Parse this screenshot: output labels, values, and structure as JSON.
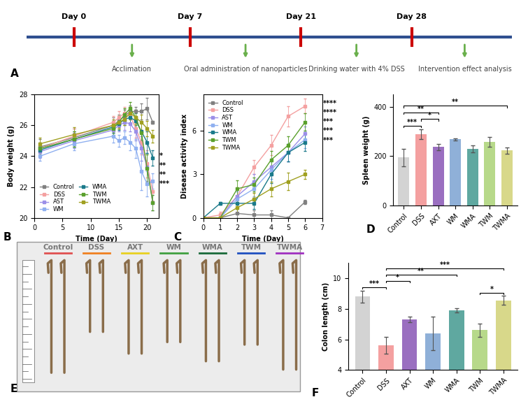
{
  "timeline": {
    "panel_label": "A",
    "days": [
      "Day 0",
      "Day 7",
      "Day 21",
      "Day 28"
    ],
    "phases": [
      "Acclimation",
      "Oral administration of nanoparticles",
      "Drinking water with 4% DSS",
      "Intervention effect analysis"
    ]
  },
  "chart_data": [
    {
      "type": "line",
      "panel_label": "B",
      "x_label": "Time (Day)",
      "y_label": "Body weight (g)",
      "x": [
        1,
        7,
        14,
        15,
        16,
        17,
        18,
        19,
        20,
        21
      ],
      "xlim": [
        0,
        22
      ],
      "xticks": [
        0,
        5,
        10,
        15,
        20
      ],
      "ylim": [
        20,
        28
      ],
      "yticks": [
        20,
        22,
        24,
        26,
        28
      ],
      "legend": "lower left",
      "marker": "square",
      "annotations": [
        "*",
        "**",
        "**",
        "***"
      ],
      "series": [
        {
          "name": "Control",
          "color": "#808080",
          "values": [
            24.6,
            25.2,
            26.0,
            26.3,
            26.6,
            26.9,
            26.9,
            26.9,
            27.1,
            26.2
          ],
          "errors": [
            0.5,
            0.6,
            0.5,
            0.4,
            0.4,
            0.4,
            0.3,
            0.5,
            0.7,
            0.1
          ]
        },
        {
          "name": "DSS",
          "color": "#f4a0a0",
          "values": [
            24.5,
            25.3,
            26.2,
            26.5,
            26.8,
            26.6,
            25.8,
            24.9,
            23.5,
            21.7
          ],
          "errors": [
            0.4,
            0.5,
            0.4,
            0.4,
            0.4,
            0.5,
            0.6,
            0.8,
            0.9,
            0.6
          ]
        },
        {
          "name": "AST",
          "color": "#9b8fe8",
          "values": [
            24.3,
            25.0,
            25.7,
            26.0,
            26.2,
            26.1,
            25.6,
            24.5,
            23.3,
            21.0
          ],
          "errors": [
            0.4,
            0.5,
            0.4,
            0.4,
            0.5,
            0.5,
            0.6,
            0.8,
            0.9,
            0.5
          ]
        },
        {
          "name": "WM",
          "color": "#8fb0f0",
          "values": [
            24.0,
            24.8,
            25.3,
            25.0,
            25.2,
            24.9,
            24.5,
            23.0,
            22.2,
            22.4
          ],
          "errors": [
            0.3,
            0.4,
            0.4,
            0.4,
            0.4,
            0.5,
            0.6,
            1.2,
            0.8,
            0.5
          ]
        },
        {
          "name": "WMA",
          "color": "#1a7a8a",
          "values": [
            24.4,
            25.1,
            25.9,
            26.1,
            26.4,
            26.5,
            26.3,
            25.6,
            24.9,
            23.9
          ],
          "errors": [
            0.4,
            0.5,
            0.4,
            0.4,
            0.4,
            0.4,
            0.5,
            0.6,
            0.7,
            0.5
          ]
        },
        {
          "name": "TWM",
          "color": "#5aa02c",
          "values": [
            24.5,
            25.1,
            25.8,
            26.2,
            26.7,
            27.1,
            26.5,
            25.5,
            23.2,
            21.0
          ],
          "errors": [
            0.4,
            0.5,
            0.4,
            0.4,
            0.4,
            0.4,
            0.5,
            0.7,
            0.9,
            0.5
          ]
        },
        {
          "name": "TWMA",
          "color": "#a0a020",
          "values": [
            24.8,
            25.4,
            26.0,
            26.2,
            26.4,
            26.8,
            26.5,
            26.2,
            25.8,
            25.3
          ],
          "errors": [
            0.4,
            0.5,
            0.4,
            0.4,
            0.4,
            0.4,
            0.4,
            0.5,
            0.5,
            0.4
          ]
        }
      ]
    },
    {
      "type": "line",
      "panel_label": "C",
      "x_label": "Time (Day)",
      "y_label": "Disease activity index",
      "x": [
        0,
        1,
        2,
        3,
        4,
        5,
        6
      ],
      "xlim": [
        0,
        7
      ],
      "xticks": [
        0,
        1,
        2,
        3,
        4,
        5,
        6,
        7
      ],
      "ylim": [
        0,
        8.5
      ],
      "yticks": [
        0,
        3,
        6
      ],
      "legend": "upper left",
      "marker": "square",
      "annotations": [
        "****",
        "****",
        "***",
        "***",
        "***"
      ],
      "series": [
        {
          "name": "Control",
          "color": "#808080",
          "values": [
            0,
            0,
            0.3,
            0.2,
            0.2,
            0,
            1.1
          ],
          "errors": [
            0,
            0,
            0.3,
            0.3,
            0.3,
            0,
            0.15
          ]
        },
        {
          "name": "DSS",
          "color": "#f4a0a0",
          "values": [
            0,
            0.2,
            1.5,
            3.5,
            5.0,
            7.0,
            7.7
          ],
          "errors": [
            0,
            0.2,
            0.6,
            0.5,
            0.7,
            0.7,
            0.5
          ]
        },
        {
          "name": "AST",
          "color": "#9b8fe8",
          "values": [
            0,
            0,
            1.5,
            2.5,
            3.5,
            4.5,
            5.8
          ],
          "errors": [
            0,
            0,
            0.5,
            0.5,
            0.6,
            0.6,
            0.5
          ]
        },
        {
          "name": "WM",
          "color": "#8fb0f0",
          "values": [
            0,
            0,
            1.3,
            2.0,
            3.3,
            4.5,
            5.4
          ],
          "errors": [
            0,
            0,
            0.5,
            0.5,
            0.6,
            0.6,
            0.6
          ]
        },
        {
          "name": "WMA",
          "color": "#1a7a8a",
          "values": [
            0,
            1.0,
            1.0,
            1.0,
            3.0,
            4.5,
            5.2
          ],
          "errors": [
            0,
            0.1,
            0.4,
            0.4,
            0.6,
            0.6,
            0.6
          ]
        },
        {
          "name": "TWM",
          "color": "#5aa02c",
          "values": [
            0,
            0,
            2.0,
            2.3,
            4.0,
            5.0,
            6.6
          ],
          "errors": [
            0,
            0,
            0.6,
            0.5,
            0.6,
            0.6,
            0.6
          ]
        },
        {
          "name": "TWMA",
          "color": "#a0a020",
          "values": [
            0,
            0,
            0.7,
            1.3,
            2.0,
            2.5,
            3.0
          ],
          "errors": [
            0,
            0,
            0.4,
            0.4,
            0.5,
            0.6,
            0.3
          ]
        }
      ]
    },
    {
      "type": "bar",
      "panel_label": "D",
      "y_label": "Spleen weight (g)",
      "categories": [
        "Control",
        "DSS",
        "AXT",
        "WM",
        "WMA",
        "TWM",
        "TWMA"
      ],
      "values": [
        195,
        290,
        237,
        268,
        230,
        258,
        223
      ],
      "errors": [
        35,
        20,
        12,
        5,
        15,
        20,
        12
      ],
      "colors": [
        "#d3d3d3",
        "#f4a0a0",
        "#9a6fc0",
        "#8fb0d8",
        "#5fa8a0",
        "#b7d98a",
        "#d8d88a"
      ],
      "ylim": [
        0,
        450
      ],
      "yticks": [
        0,
        200,
        400
      ],
      "comparisons": [
        {
          "groups": [
            "Control",
            "DSS"
          ],
          "label": "***"
        },
        {
          "groups": [
            "Control",
            "AXT"
          ],
          "label": "**"
        },
        {
          "groups": [
            "DSS",
            "AXT"
          ],
          "label": "*"
        },
        {
          "groups": [
            "Control",
            "TWMA"
          ],
          "label": "**"
        }
      ]
    },
    {
      "type": "bar",
      "panel_label": "F",
      "y_label": "Colon length (cm)",
      "categories": [
        "Control",
        "DSS",
        "AXT",
        "WM",
        "WMA",
        "TWM",
        "TWMA"
      ],
      "values": [
        8.8,
        5.6,
        7.3,
        6.4,
        7.9,
        6.6,
        8.55
      ],
      "errors": [
        0.4,
        0.55,
        0.2,
        1.1,
        0.15,
        0.45,
        0.3
      ],
      "colors": [
        "#d3d3d3",
        "#f4a0a0",
        "#9a6fc0",
        "#8fb0d8",
        "#5fa8a0",
        "#b7d98a",
        "#d8d88a"
      ],
      "ylim": [
        4,
        11
      ],
      "yticks": [
        4,
        6,
        8,
        10
      ],
      "comparisons": [
        {
          "groups": [
            "Control",
            "DSS"
          ],
          "label": "***"
        },
        {
          "groups": [
            "DSS",
            "AXT"
          ],
          "label": "*"
        },
        {
          "groups": [
            "DSS",
            "WMA"
          ],
          "label": "**"
        },
        {
          "groups": [
            "DSS",
            "TWMA"
          ],
          "label": "***"
        },
        {
          "groups": [
            "TWM",
            "TWMA"
          ],
          "label": "*"
        }
      ]
    }
  ],
  "photo": {
    "panel_label": "E",
    "groups": [
      "Control",
      "DSS",
      "AXT",
      "WM",
      "WMA",
      "TWM",
      "TWMA"
    ],
    "colors": [
      "#e05050",
      "#f08020",
      "#e8d020",
      "#40a040",
      "#1a6a3a",
      "#2050c0",
      "#a030c0"
    ]
  }
}
